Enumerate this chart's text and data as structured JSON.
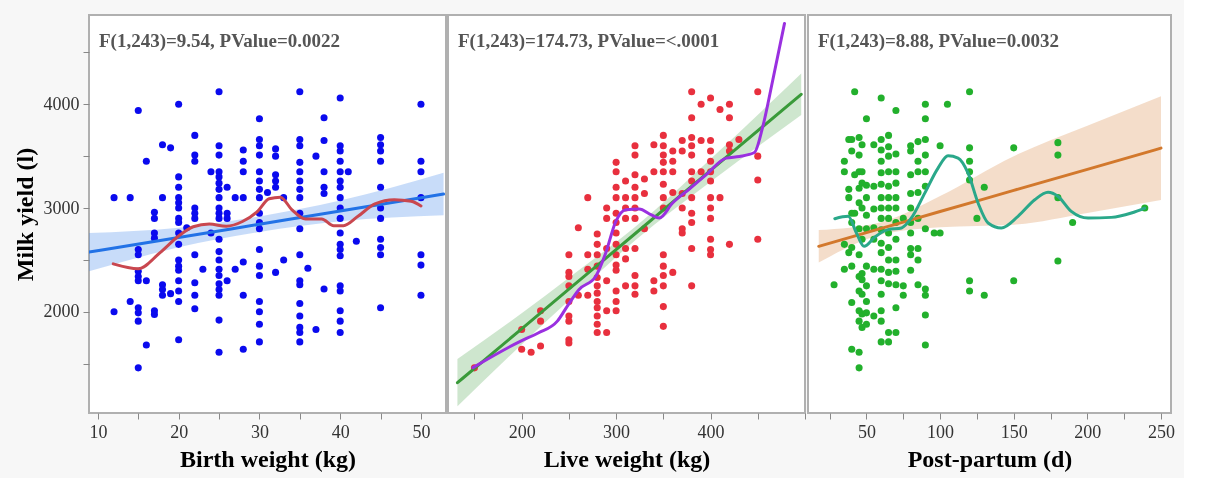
{
  "chart_data": [
    {
      "type": "scatter",
      "xlabel": "Birth weight (kg)",
      "ylabel": "Milk yield (l)",
      "annotations": [
        "F(1,243)=9.54, PValue=0.0022"
      ],
      "xlim": [
        8.9,
        53.1
      ],
      "xticks": [
        10,
        {
          "value": 15,
          "label": null
        },
        20,
        {
          "value": 25,
          "label": null
        },
        30,
        {
          "value": 35,
          "label": null
        },
        40,
        {
          "value": 45,
          "label": null
        },
        50
      ],
      "ylim": [
        1025,
        4860
      ],
      "yticks": [
        {
          "value": 1500,
          "label": null
        },
        2000,
        {
          "value": 2500,
          "label": null
        },
        3000,
        {
          "value": 3500,
          "label": null
        },
        4000,
        {
          "value": 4500,
          "label": null
        }
      ],
      "series": [
        {
          "type": "scatter",
          "marker": "circle",
          "color": "#0a0aee",
          "x": [
            12,
            12,
            14,
            14,
            15,
            15,
            15,
            15,
            15,
            15,
            15,
            15,
            15,
            15,
            16,
            16,
            16,
            17,
            17,
            17,
            17,
            17,
            17,
            18,
            18,
            18,
            18,
            18,
            19,
            19,
            20,
            20,
            20,
            20,
            20,
            20,
            20,
            20,
            20,
            20,
            20,
            20,
            20,
            20,
            20,
            20,
            20,
            21,
            22,
            22,
            22,
            22,
            22,
            22,
            22,
            22,
            22,
            22,
            23,
            24,
            24,
            25,
            25,
            25,
            25,
            25,
            25,
            25,
            25,
            25,
            25,
            25,
            25,
            25,
            25,
            25,
            25,
            25,
            25,
            25,
            25,
            25,
            26,
            26,
            26,
            26,
            27,
            27,
            28,
            28,
            28,
            28,
            28,
            28,
            28,
            30,
            30,
            30,
            30,
            30,
            30,
            30,
            30,
            30,
            30,
            30,
            30,
            30,
            30,
            30,
            30,
            30,
            30,
            31,
            32,
            32,
            32,
            32,
            32,
            32,
            33,
            33,
            35,
            35,
            35,
            35,
            35,
            35,
            35,
            35,
            35,
            35,
            35,
            35,
            35,
            35,
            35,
            35,
            35,
            35,
            36,
            37,
            37,
            38,
            38,
            38,
            38,
            38,
            38,
            40,
            40,
            40,
            40,
            40,
            40,
            40,
            40,
            40,
            40,
            40,
            40,
            40,
            40,
            40,
            40,
            40,
            40,
            40,
            41,
            42,
            45,
            45,
            45,
            45,
            45,
            45,
            45,
            45,
            45,
            45,
            45,
            50,
            50,
            50,
            50,
            50,
            50,
            50
          ],
          "values": [
            3100,
            2000,
            3100,
            2100,
            3940,
            2600,
            2550,
            2390,
            2340,
            2300,
            2040,
            1990,
            1910,
            1460,
            3450,
            2300,
            1680,
            2960,
            2900,
            2760,
            2710,
            2010,
            1975,
            3610,
            3100,
            2260,
            2215,
            2160,
            3580,
            2175,
            4000,
            3300,
            3200,
            3100,
            3050,
            3000,
            2900,
            2860,
            2760,
            2650,
            2500,
            2440,
            2400,
            2300,
            2200,
            2100,
            1730,
            2810,
            3700,
            3510,
            3450,
            3000,
            2950,
            2900,
            2550,
            2280,
            2160,
            2030,
            2410,
            3350,
            2760,
            4120,
            3600,
            3510,
            3350,
            3300,
            3240,
            3180,
            3100,
            3000,
            2950,
            2900,
            2700,
            2580,
            2500,
            2410,
            2350,
            2270,
            2215,
            2160,
            1920,
            1610,
            3200,
            2950,
            2900,
            2300,
            3100,
            2410,
            3560,
            3450,
            3350,
            3100,
            2480,
            2160,
            1640,
            3860,
            3660,
            3600,
            3510,
            3350,
            3260,
            3180,
            3100,
            2950,
            2860,
            2800,
            2600,
            2440,
            2350,
            2100,
            2000,
            1880,
            1710,
            3150,
            3570,
            3500,
            3320,
            3260,
            3200,
            2380,
            3100,
            2500,
            4120,
            3660,
            3600,
            3440,
            3350,
            3260,
            3180,
            3100,
            2950,
            2800,
            2550,
            2300,
            2260,
            2080,
            1960,
            1850,
            1800,
            1710,
            2420,
            3500,
            1830,
            3870,
            3650,
            3350,
            3200,
            3140,
            2220,
            4060,
            3600,
            3550,
            3450,
            3350,
            3260,
            3200,
            3100,
            3000,
            2900,
            2760,
            2650,
            2600,
            2540,
            2250,
            2200,
            2010,
            1910,
            1800,
            3350,
            2680,
            3680,
            3610,
            3550,
            3450,
            3200,
            3000,
            2900,
            2700,
            2620,
            2550,
            2040,
            4000,
            3450,
            3350,
            3100,
            2550,
            2450,
            2160
          ]
        },
        {
          "type": "line",
          "marker": "none",
          "line_style": "solid",
          "color": "#2272e6",
          "x": [
            8.9,
            20,
            30,
            40,
            52.8
          ],
          "values": [
            2575,
            2716,
            2844,
            2972,
            3135
          ],
          "lower": [
            2390,
            2621,
            2769,
            2872,
            2930
          ],
          "upper": [
            2760,
            2811,
            2919,
            3072,
            3340
          ]
        },
        {
          "type": "line",
          "marker": "none",
          "line_style": "solid",
          "color": "#c9474f",
          "x": [
            11.9,
            15,
            17.7,
            20,
            21.8,
            23.8,
            25.9,
            27.9,
            29.8,
            31.2,
            32.6,
            34,
            35.7,
            37.7,
            39.2,
            40.4,
            42.2,
            44.3,
            46.7,
            48.8,
            50
          ],
          "values": [
            2462,
            2415,
            2570,
            2730,
            2820,
            2845,
            2825,
            2870,
            2970,
            3090,
            3105,
            2985,
            2895,
            2895,
            2830,
            2830,
            2920,
            3040,
            3080,
            3065,
            3020
          ]
        }
      ]
    },
    {
      "type": "scatter",
      "xlabel": "Live weight (kg)",
      "annotations": [
        "F(1,243)=174.73, PValue=<.0001"
      ],
      "tick_labels": "x",
      "xlim": [
        122,
        500
      ],
      "xticks": [
        {
          "value": 150,
          "label": null
        },
        200,
        {
          "value": 250,
          "label": null
        },
        300,
        {
          "value": 350,
          "label": null
        },
        400,
        {
          "value": 450,
          "label": null
        },
        {
          "value": 500,
          "label": null
        }
      ],
      "ylim": [
        1025,
        4860
      ],
      "series": [
        {
          "type": "scatter",
          "marker": "circle",
          "color": "#e8303e",
          "x": [
            150,
            200,
            200,
            210,
            220,
            220,
            220,
            250,
            250,
            250,
            250,
            250,
            250,
            250,
            250,
            250,
            260,
            260,
            270,
            270,
            270,
            270,
            280,
            280,
            280,
            280,
            280,
            280,
            280,
            280,
            280,
            280,
            280,
            280,
            290,
            290,
            290,
            290,
            290,
            290,
            300,
            300,
            300,
            300,
            300,
            300,
            300,
            300,
            300,
            300,
            300,
            300,
            300,
            300,
            310,
            310,
            310,
            310,
            310,
            310,
            310,
            320,
            320,
            320,
            320,
            320,
            320,
            320,
            320,
            320,
            320,
            320,
            330,
            330,
            330,
            340,
            340,
            340,
            340,
            350,
            350,
            350,
            350,
            350,
            350,
            350,
            350,
            350,
            350,
            350,
            350,
            350,
            350,
            360,
            360,
            360,
            360,
            360,
            370,
            370,
            370,
            370,
            370,
            370,
            380,
            380,
            380,
            380,
            380,
            380,
            380,
            380,
            380,
            380,
            380,
            380,
            390,
            390,
            390,
            400,
            400,
            400,
            400,
            400,
            400,
            400,
            400,
            400,
            400,
            400,
            400,
            410,
            410,
            420,
            420,
            420,
            420,
            420,
            430,
            450,
            450,
            450,
            450
          ],
          "values": [
            1460,
            1830,
            1640,
            1610,
            2010,
            1910,
            1670,
            2550,
            2380,
            2340,
            2250,
            2100,
            1960,
            1910,
            1730,
            1700,
            2810,
            2160,
            3100,
            2550,
            2410,
            2160,
            2750,
            2650,
            2550,
            2440,
            2330,
            2250,
            2180,
            2100,
            2040,
            1960,
            1880,
            1800,
            3000,
            2900,
            2610,
            2300,
            2010,
            1800,
            3440,
            3350,
            3200,
            3100,
            2950,
            2860,
            2760,
            2650,
            2550,
            2450,
            2400,
            2200,
            2100,
            2010,
            3260,
            3100,
            3000,
            2900,
            2610,
            2510,
            2250,
            3600,
            3510,
            3320,
            3200,
            3100,
            3000,
            2900,
            2610,
            2350,
            2250,
            2170,
            3280,
            3140,
            2800,
            3610,
            3350,
            2300,
            2200,
            3700,
            3600,
            3510,
            3440,
            3350,
            3230,
            3100,
            3000,
            2550,
            2440,
            2350,
            2250,
            2050,
            1860,
            3550,
            3450,
            3350,
            3150,
            2380,
            3650,
            3550,
            3140,
            3000,
            2800,
            2760,
            4120,
            3870,
            3680,
            3600,
            3510,
            3350,
            3260,
            3100,
            2950,
            2860,
            2610,
            2250,
            4000,
            3650,
            3350,
            4060,
            3650,
            3550,
            3450,
            3350,
            3260,
            3100,
            3000,
            2900,
            2700,
            2600,
            2550,
            3950,
            3100,
            4000,
            3870,
            3610,
            3550,
            2650,
            3660,
            4120,
            3500,
            3270,
            2700
          ]
        },
        {
          "type": "line",
          "marker": "none",
          "line_style": "solid",
          "color": "#3a9a3a",
          "x": [
            132,
            200,
            250,
            320,
            400,
            496
          ],
          "values": [
            1317,
            1836,
            2218,
            2752,
            3363,
            4096
          ],
          "lower": [
            1089,
            1686,
            2108,
            2687,
            3253,
            3896
          ],
          "upper": [
            1545,
            1986,
            2328,
            2817,
            3473,
            4296
          ]
        },
        {
          "type": "line",
          "marker": "none",
          "line_style": "solid",
          "color": "#9a30e0",
          "x": [
            148.4,
            199,
            218,
            237.8,
            248.4,
            260.8,
            278.5,
            289,
            299.7,
            310.3,
            324.5,
            336.8,
            345.7,
            359.8,
            377.5,
            395.2,
            416.4,
            430.5,
            446.4,
            455.3,
            465.9,
            478.3
          ],
          "values": [
            1462,
            1718,
            1798,
            1910,
            2055,
            2215,
            2343,
            2567,
            2872,
            2984,
            2990,
            2936,
            2904,
            3048,
            3183,
            3320,
            3481,
            3497,
            3535,
            3785,
            4234,
            4779
          ]
        }
      ]
    },
    {
      "type": "scatter",
      "xlabel": "Post-partum (d)",
      "annotations": [
        "F(1,243)=8.88, PValue=0.0032"
      ],
      "tick_labels": "x",
      "xlim": [
        10.3,
        256.8
      ],
      "xticks": [
        {
          "value": 25,
          "label": null
        },
        50,
        {
          "value": 75,
          "label": null
        },
        100,
        {
          "value": 125,
          "label": null
        },
        150,
        {
          "value": 175,
          "label": null
        },
        200,
        {
          "value": 225,
          "label": null
        },
        250
      ],
      "ylim": [
        1025,
        4860
      ],
      "series": [
        {
          "type": "scatter",
          "marker": "circle",
          "color": "#22b02c",
          "x": [
            28,
            35,
            35,
            35,
            35,
            38,
            38,
            38,
            38,
            40,
            40,
            40,
            40,
            40,
            40,
            40,
            40,
            42,
            42,
            42,
            45,
            45,
            45,
            45,
            45,
            45,
            45,
            45,
            45,
            45,
            45,
            45,
            45,
            47,
            47,
            47,
            47,
            47,
            47,
            47,
            47,
            47,
            47,
            50,
            50,
            50,
            50,
            50,
            50,
            50,
            50,
            50,
            50,
            55,
            55,
            55,
            55,
            55,
            55,
            55,
            60,
            60,
            60,
            60,
            60,
            60,
            60,
            60,
            60,
            60,
            60,
            60,
            60,
            60,
            60,
            60,
            60,
            60,
            65,
            65,
            65,
            65,
            65,
            65,
            65,
            65,
            65,
            65,
            65,
            65,
            65,
            65,
            65,
            70,
            70,
            70,
            70,
            70,
            70,
            70,
            70,
            70,
            70,
            70,
            70,
            70,
            75,
            75,
            75,
            80,
            80,
            80,
            80,
            80,
            80,
            80,
            80,
            80,
            80,
            85,
            85,
            85,
            85,
            85,
            85,
            85,
            85,
            90,
            90,
            90,
            90,
            90,
            90,
            90,
            90,
            90,
            90,
            90,
            96,
            100,
            100,
            105,
            120,
            120,
            120,
            120,
            120,
            120,
            120,
            125,
            130,
            130,
            150,
            150,
            180,
            180,
            180,
            180,
            190,
            239
          ],
          "values": [
            2260,
            3450,
            3350,
            2650,
            2410,
            3660,
            3180,
            3100,
            2570,
            3660,
            3550,
            2950,
            2860,
            2620,
            2440,
            2090,
            1640,
            4120,
            3320,
            2950,
            3680,
            3510,
            3350,
            3190,
            3050,
            2800,
            2550,
            2340,
            2200,
            2010,
            1910,
            1610,
            1460,
            3610,
            3350,
            3240,
            3000,
            2700,
            2370,
            2310,
            2170,
            1980,
            1850,
            3860,
            3220,
            3100,
            2930,
            2800,
            2440,
            2250,
            2100,
            1990,
            1880,
            3610,
            3210,
            2990,
            2810,
            2700,
            2410,
            1960,
            4060,
            3660,
            3560,
            3450,
            3340,
            3230,
            3100,
            3000,
            2900,
            2790,
            2660,
            2570,
            2410,
            2300,
            2170,
            2010,
            1910,
            1710,
            3700,
            3590,
            3500,
            3350,
            3210,
            3100,
            3000,
            2900,
            2760,
            2620,
            2500,
            2380,
            2270,
            1800,
            1710,
            3940,
            3520,
            3350,
            3240,
            3100,
            3000,
            2860,
            2700,
            2500,
            2390,
            2260,
            2040,
            1800,
            2900,
            2250,
            2160,
            3600,
            3550,
            3320,
            3140,
            3000,
            2860,
            2760,
            2610,
            2550,
            2400,
            3640,
            3450,
            3350,
            3150,
            2900,
            2610,
            2500,
            2260,
            4000,
            3860,
            3660,
            3510,
            3350,
            3210,
            2800,
            2220,
            2160,
            1970,
            1680,
            2760,
            3600,
            2760,
            4000,
            4120,
            3580,
            3450,
            3350,
            3270,
            2300,
            2200,
            2900,
            3200,
            2160,
            3580,
            2300,
            3630,
            3510,
            3100,
            2490,
            2860,
            3000
          ]
        },
        {
          "type": "line",
          "marker": "none",
          "line_style": "solid",
          "color": "#d2782c",
          "x": [
            17.6,
            60,
            100,
            150,
            200,
            250
          ],
          "values": [
            2631,
            2804,
            2966,
            3170,
            3373,
            3577
          ],
          "lower": [
            2474,
            2744,
            2816,
            2840,
            2953,
            3077
          ],
          "upper": [
            2788,
            2864,
            3116,
            3500,
            3793,
            4077
          ]
        },
        {
          "type": "line",
          "marker": "none",
          "line_style": "solid",
          "color": "#2aa88a",
          "x": [
            28.5,
            37.6,
            43.2,
            48.4,
            55.7,
            64.7,
            73.8,
            80.5,
            89.6,
            98.6,
            105.4,
            112.2,
            119,
            125.8,
            132.6,
            141.6,
            152.9,
            164.3,
            173.3,
            180.1,
            189.1,
            200.5,
            216.3,
            229.9,
            238.9
          ],
          "values": [
            2897,
            2920,
            2760,
            2631,
            2721,
            2792,
            2808,
            2904,
            3144,
            3385,
            3503,
            3481,
            3336,
            3048,
            2856,
            2808,
            2920,
            3080,
            3151,
            3112,
            2968,
            2904,
            2910,
            2952,
            3000
          ]
        }
      ]
    }
  ]
}
